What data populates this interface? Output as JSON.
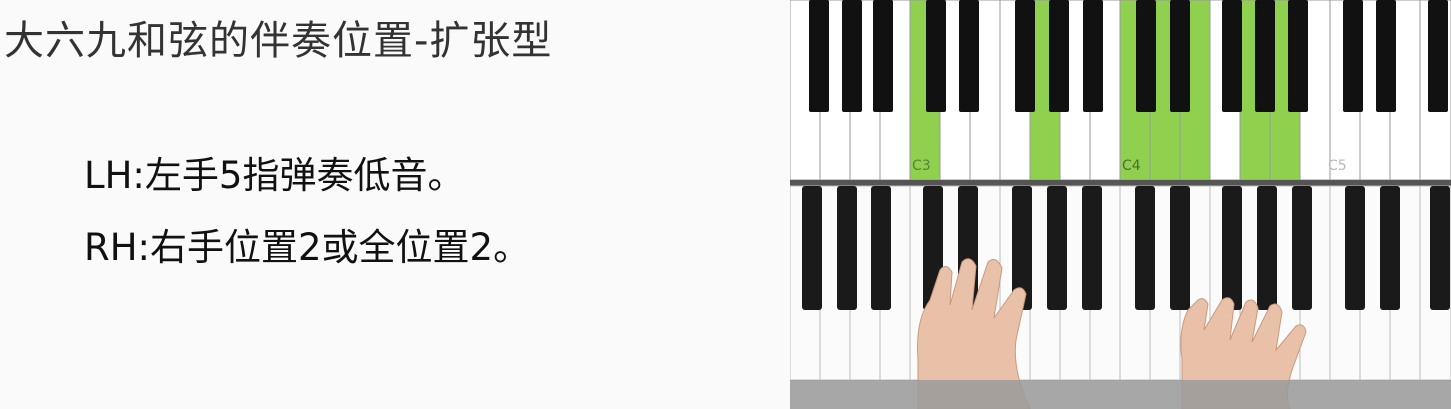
{
  "slide": {
    "title": "大六九和弦的伴奏位置-扩张型",
    "lines": [
      "LH:左手5指弹奏低音。",
      "RH:右手位置2或全位置2。"
    ]
  },
  "keyboard_overlay": {
    "labels": [
      "C3",
      "C4",
      "C5"
    ],
    "highlight_color": "#8fd14f"
  }
}
